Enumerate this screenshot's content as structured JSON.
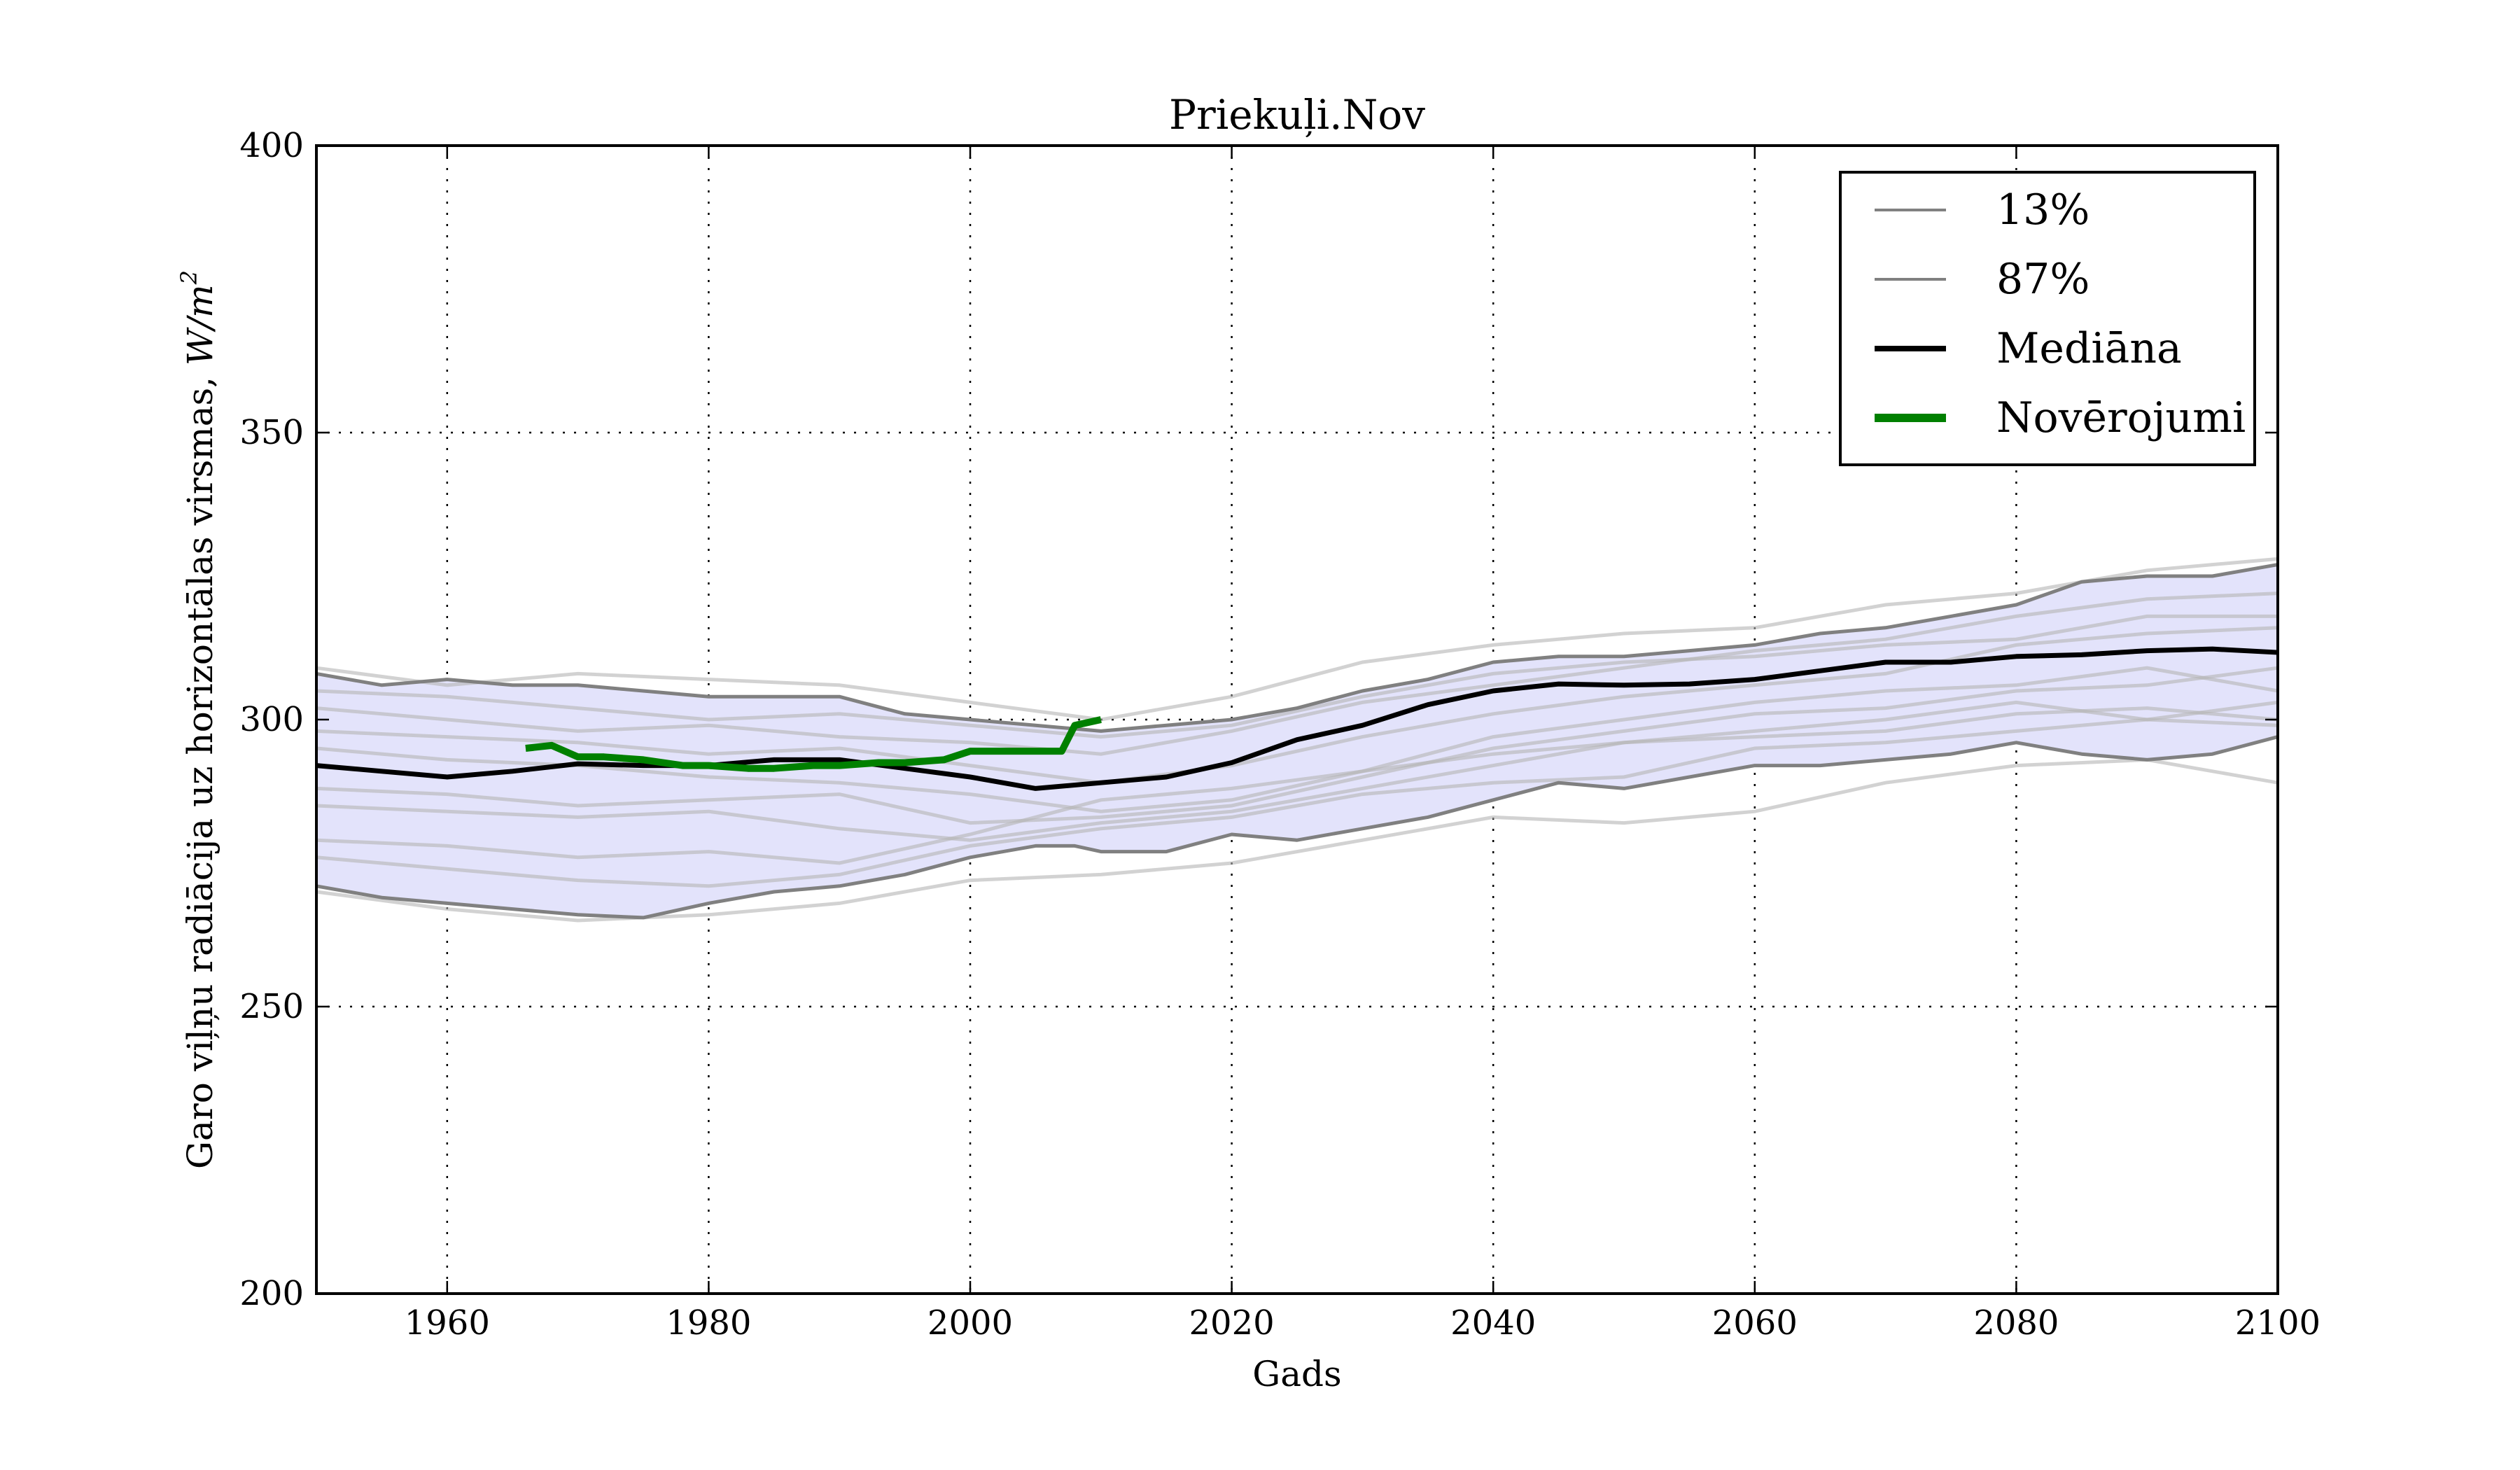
{
  "chart_data": {
    "type": "line",
    "title": "Priekuļi.Nov",
    "xlabel": "Gads",
    "ylabel": "Garo viļņu radiācija uz horizontālas virsmas, W/m²",
    "ylabel_main": "Garo viļņu radiācija uz horizontālas virsmas, ",
    "ylabel_unit": "W/m",
    "ylabel_exp": "2",
    "xlim": [
      1950,
      2100
    ],
    "ylim": [
      200,
      400
    ],
    "xticks": [
      1960,
      1980,
      2000,
      2020,
      2040,
      2060,
      2080,
      2100
    ],
    "yticks": [
      200,
      250,
      300,
      350,
      400
    ],
    "grid": true,
    "legend_position": "top-right",
    "legend": [
      {
        "label": "13%",
        "color": "#808080",
        "style": "thin"
      },
      {
        "label": "87%",
        "color": "#808080",
        "style": "thin"
      },
      {
        "label": "Mediāna",
        "color": "#000000",
        "style": "thick"
      },
      {
        "label": "Novērojumi",
        "color": "#008000",
        "style": "thicker"
      }
    ],
    "band_fill": "#e3e3fb",
    "series": [
      {
        "name": "87%",
        "color": "#808080",
        "x": [
          1950,
          1955,
          1960,
          1965,
          1970,
          1975,
          1980,
          1985,
          1990,
          1995,
          2000,
          2005,
          2010,
          2015,
          2020,
          2025,
          2030,
          2035,
          2040,
          2045,
          2050,
          2055,
          2060,
          2065,
          2070,
          2075,
          2080,
          2085,
          2090,
          2095,
          2100
        ],
        "y": [
          308,
          306,
          307,
          306,
          306,
          305,
          304,
          304,
          304,
          301,
          300,
          299,
          298,
          299,
          300,
          302,
          305,
          307,
          310,
          311,
          311,
          312,
          313,
          315,
          316,
          318,
          320,
          324,
          325,
          325,
          327
        ]
      },
      {
        "name": "13%",
        "color": "#808080",
        "x": [
          1950,
          1955,
          1960,
          1965,
          1970,
          1975,
          1980,
          1985,
          1990,
          1995,
          2000,
          2005,
          2008,
          2010,
          2015,
          2020,
          2025,
          2030,
          2035,
          2040,
          2045,
          2050,
          2055,
          2060,
          2065,
          2070,
          2075,
          2080,
          2085,
          2090,
          2095,
          2100
        ],
        "y": [
          271,
          269,
          268,
          267,
          266,
          265.5,
          268,
          270,
          271,
          273,
          276,
          278,
          278,
          277,
          277,
          280,
          279,
          281,
          283,
          286,
          289,
          288,
          290,
          292,
          292,
          293,
          294,
          296,
          294,
          293,
          294,
          297
        ]
      },
      {
        "name": "Mediāna",
        "color": "#000000",
        "x": [
          1950,
          1955,
          1960,
          1965,
          1970,
          1975,
          1980,
          1985,
          1990,
          1995,
          2000,
          2005,
          2010,
          2015,
          2020,
          2025,
          2030,
          2035,
          2040,
          2045,
          2050,
          2055,
          2060,
          2065,
          2070,
          2075,
          2080,
          2085,
          2090,
          2095,
          2100
        ],
        "y": [
          292,
          291,
          290,
          291,
          292.3,
          292,
          292,
          293,
          293,
          291.5,
          290,
          288,
          289,
          290,
          292.5,
          296.5,
          299,
          302.6,
          305,
          306.2,
          306,
          306.2,
          307,
          308.5,
          310,
          310,
          311,
          311.3,
          312,
          312.3,
          311.7
        ]
      },
      {
        "name": "Novērojumi",
        "color": "#008000",
        "x": [
          1966,
          1968,
          1970,
          1972,
          1975,
          1978,
          1980,
          1983,
          1985,
          1988,
          1990,
          1993,
          1995,
          1998,
          2000,
          2003,
          2005,
          2007,
          2008,
          2010
        ],
        "y": [
          295,
          295.5,
          293.5,
          293.5,
          293,
          292,
          292,
          291.5,
          291.5,
          292,
          292,
          292.5,
          292.5,
          293,
          294.5,
          294.5,
          294.5,
          294.5,
          299,
          300
        ]
      }
    ],
    "ensemble_members": [
      {
        "x": [
          1950,
          1960,
          1970,
          1980,
          1990,
          2000,
          2010,
          2020,
          2030,
          2040,
          2050,
          2060,
          2070,
          2080,
          2090,
          2100
        ],
        "y": [
          309,
          306,
          308,
          307,
          306,
          303,
          300,
          304,
          310,
          313,
          315,
          316,
          320,
          322,
          326,
          328
        ]
      },
      {
        "x": [
          1950,
          1960,
          1970,
          1980,
          1990,
          2000,
          2010,
          2020,
          2030,
          2040,
          2050,
          2060,
          2070,
          2080,
          2090,
          2100
        ],
        "y": [
          302,
          300,
          298,
          299,
          297,
          296,
          294,
          298,
          303,
          306,
          309,
          312,
          314,
          318,
          321,
          322
        ]
      },
      {
        "x": [
          1950,
          1960,
          1970,
          1980,
          1990,
          2000,
          2010,
          2020,
          2030,
          2040,
          2050,
          2060,
          2070,
          2080,
          2090,
          2100
        ],
        "y": [
          298,
          297,
          296,
          294,
          295,
          292,
          289,
          292,
          297,
          301,
          304,
          306,
          308,
          313,
          315,
          316
        ]
      },
      {
        "x": [
          1950,
          1960,
          1970,
          1980,
          1990,
          2000,
          2010,
          2020,
          2030,
          2040,
          2050,
          2060,
          2070,
          2080,
          2090,
          2100
        ],
        "y": [
          295,
          293,
          292,
          290,
          289,
          287,
          284,
          286,
          291,
          297,
          300,
          303,
          305,
          306,
          309,
          305
        ]
      },
      {
        "x": [
          1950,
          1960,
          1970,
          1980,
          1990,
          2000,
          2010,
          2020,
          2030,
          2040,
          2050,
          2060,
          2070,
          2080,
          2090,
          2100
        ],
        "y": [
          288,
          287,
          285,
          286,
          287,
          282,
          283,
          285,
          290,
          295,
          298,
          301,
          302,
          305,
          306,
          309
        ]
      },
      {
        "x": [
          1950,
          1960,
          1970,
          1980,
          1990,
          2000,
          2010,
          2020,
          2030,
          2040,
          2050,
          2060,
          2070,
          2080,
          2090,
          2100
        ],
        "y": [
          285,
          284,
          283,
          284,
          281,
          279,
          282,
          284,
          288,
          292,
          296,
          298,
          300,
          303,
          300,
          303
        ]
      },
      {
        "x": [
          1950,
          1960,
          1970,
          1980,
          1990,
          2000,
          2010,
          2020,
          2030,
          2040,
          2050,
          2060,
          2070,
          2080,
          2090,
          2100
        ],
        "y": [
          279,
          278,
          276,
          277,
          275,
          280,
          286,
          288,
          291,
          294,
          296,
          297,
          298,
          301,
          302,
          300
        ]
      },
      {
        "x": [
          1950,
          1960,
          1970,
          1980,
          1990,
          2000,
          2010,
          2020,
          2030,
          2040,
          2050,
          2060,
          2070,
          2080,
          2090,
          2100
        ],
        "y": [
          276,
          274,
          272,
          271,
          273,
          278,
          281,
          283,
          287,
          289,
          290,
          295,
          296,
          298,
          300,
          299
        ]
      },
      {
        "x": [
          1950,
          1960,
          1970,
          1980,
          1990,
          2000,
          2010,
          2020,
          2030,
          2040,
          2050,
          2060,
          2070,
          2080,
          2090,
          2100
        ],
        "y": [
          270,
          267,
          265,
          266,
          268,
          272,
          273,
          275,
          279,
          283,
          282,
          284,
          289,
          292,
          293,
          289
        ]
      },
      {
        "x": [
          1950,
          1960,
          1970,
          1980,
          1990,
          2000,
          2010,
          2020,
          2030,
          2040,
          2050,
          2060,
          2070,
          2080,
          2090,
          2100
        ],
        "y": [
          305,
          304,
          302,
          300,
          301,
          299,
          297,
          299,
          304,
          308,
          310,
          311,
          313,
          314,
          318,
          318
        ]
      }
    ]
  }
}
